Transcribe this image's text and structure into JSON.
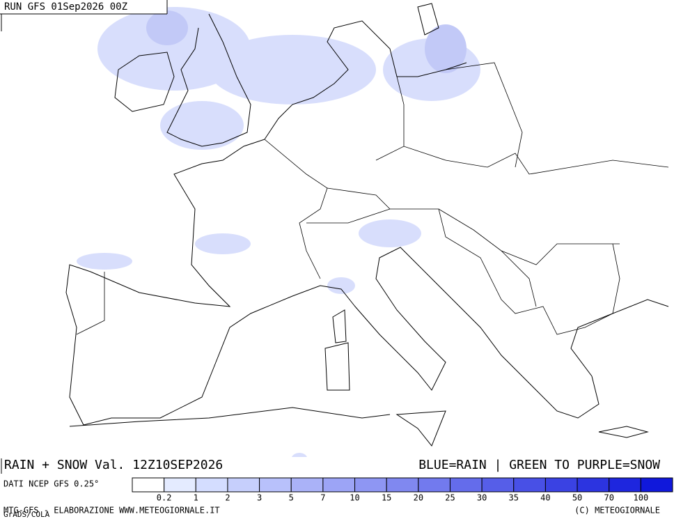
{
  "header": {
    "run": "RUN GFS 01Sep2026 00Z"
  },
  "footer": {
    "title": "RAIN + SNOW Val. 12Z10SEP2026",
    "legend_note": "BLUE=RAIN | GREEN TO PURPLE=SNOW",
    "data_source": "DATI NCEP GFS 0.25°",
    "credit_left": "MTG-GFS - ELABORAZIONE WWW.METEOGIORNALE.IT",
    "grads": "GrADS/COLA",
    "credit_right": "(C) METEOGIORNALE"
  },
  "colorbar": {
    "labels": [
      0.2,
      1,
      2,
      3,
      5,
      7,
      10,
      15,
      20,
      25,
      30,
      35,
      40,
      50,
      70,
      100
    ],
    "colors": [
      "#ffffff",
      "#e4ebff",
      "#d4ddff",
      "#c6cffc",
      "#b8c1fb",
      "#aab2f8",
      "#9ca4f6",
      "#8e96f3",
      "#8088f0",
      "#727aee",
      "#646ceb",
      "#565ee8",
      "#4850e6",
      "#3a42e3",
      "#2c34e0",
      "#1e26de",
      "#1018db"
    ]
  }
}
